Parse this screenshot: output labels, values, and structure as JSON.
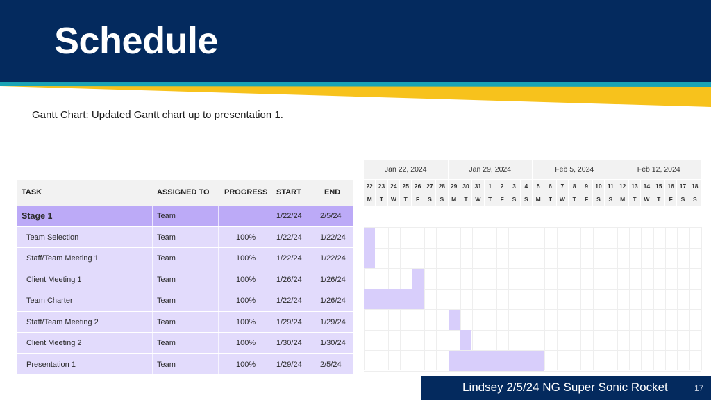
{
  "slide": {
    "title": "Schedule",
    "subtitle": "Gantt Chart: Updated Gantt chart up to presentation 1.",
    "footer": "Lindsey 2/5/24 NG Super Sonic Rocket",
    "page_number": "17",
    "colors": {
      "navy": "#042a5e",
      "teal": "#1aa3b5",
      "gold": "#f7c21c",
      "stage_row": "#bcaaf7",
      "task_row": "#e2dbfc",
      "bar": "#d8cefb"
    }
  },
  "table": {
    "headers": {
      "task": "TASK",
      "assigned": "ASSIGNED TO",
      "progress": "PROGRESS",
      "start": "START",
      "end": "END"
    },
    "rows": [
      {
        "type": "stage",
        "task": "Stage 1",
        "assigned": "Team",
        "progress": "",
        "start": "1/22/24",
        "end": "2/5/24"
      },
      {
        "type": "task",
        "task": "Team Selection",
        "assigned": "Team",
        "progress": "100%",
        "start": "1/22/24",
        "end": "1/22/24"
      },
      {
        "type": "task",
        "task": "Staff/Team Meeting 1",
        "assigned": "Team",
        "progress": "100%",
        "start": "1/22/24",
        "end": "1/22/24"
      },
      {
        "type": "task",
        "task": "Client Meeting 1",
        "assigned": "Team",
        "progress": "100%",
        "start": "1/26/24",
        "end": "1/26/24"
      },
      {
        "type": "task",
        "task": "Team Charter",
        "assigned": "Team",
        "progress": "100%",
        "start": "1/22/24",
        "end": "1/26/24"
      },
      {
        "type": "task",
        "task": "Staff/Team Meeting 2",
        "assigned": "Team",
        "progress": "100%",
        "start": "1/29/24",
        "end": "1/29/24"
      },
      {
        "type": "task",
        "task": "Client Meeting 2",
        "assigned": "Team",
        "progress": "100%",
        "start": "1/30/24",
        "end": "1/30/24"
      },
      {
        "type": "task",
        "task": "Presentation 1",
        "assigned": "Team",
        "progress": "100%",
        "start": "1/29/24",
        "end": "2/5/24"
      }
    ]
  },
  "gantt": {
    "weeks": [
      "Jan 22, 2024",
      "Jan 29, 2024",
      "Feb 5, 2024",
      "Feb 12, 2024"
    ],
    "days": [
      "22",
      "23",
      "24",
      "25",
      "26",
      "27",
      "28",
      "29",
      "30",
      "31",
      "1",
      "2",
      "3",
      "4",
      "5",
      "6",
      "7",
      "8",
      "9",
      "10",
      "11",
      "12",
      "13",
      "14",
      "15",
      "16",
      "17",
      "18"
    ],
    "weekdays": [
      "M",
      "T",
      "W",
      "T",
      "F",
      "S",
      "S",
      "M",
      "T",
      "W",
      "T",
      "F",
      "S",
      "S",
      "M",
      "T",
      "W",
      "T",
      "F",
      "S",
      "S",
      "M",
      "T",
      "W",
      "T",
      "F",
      "S",
      "S"
    ],
    "bars": [
      {
        "row": 1,
        "start_day": 0,
        "end_day": 0
      },
      {
        "row": 2,
        "start_day": 0,
        "end_day": 0
      },
      {
        "row": 3,
        "start_day": 4,
        "end_day": 4
      },
      {
        "row": 4,
        "start_day": 0,
        "end_day": 4
      },
      {
        "row": 5,
        "start_day": 7,
        "end_day": 7
      },
      {
        "row": 6,
        "start_day": 8,
        "end_day": 8
      },
      {
        "row": 7,
        "start_day": 7,
        "end_day": 14
      }
    ]
  }
}
